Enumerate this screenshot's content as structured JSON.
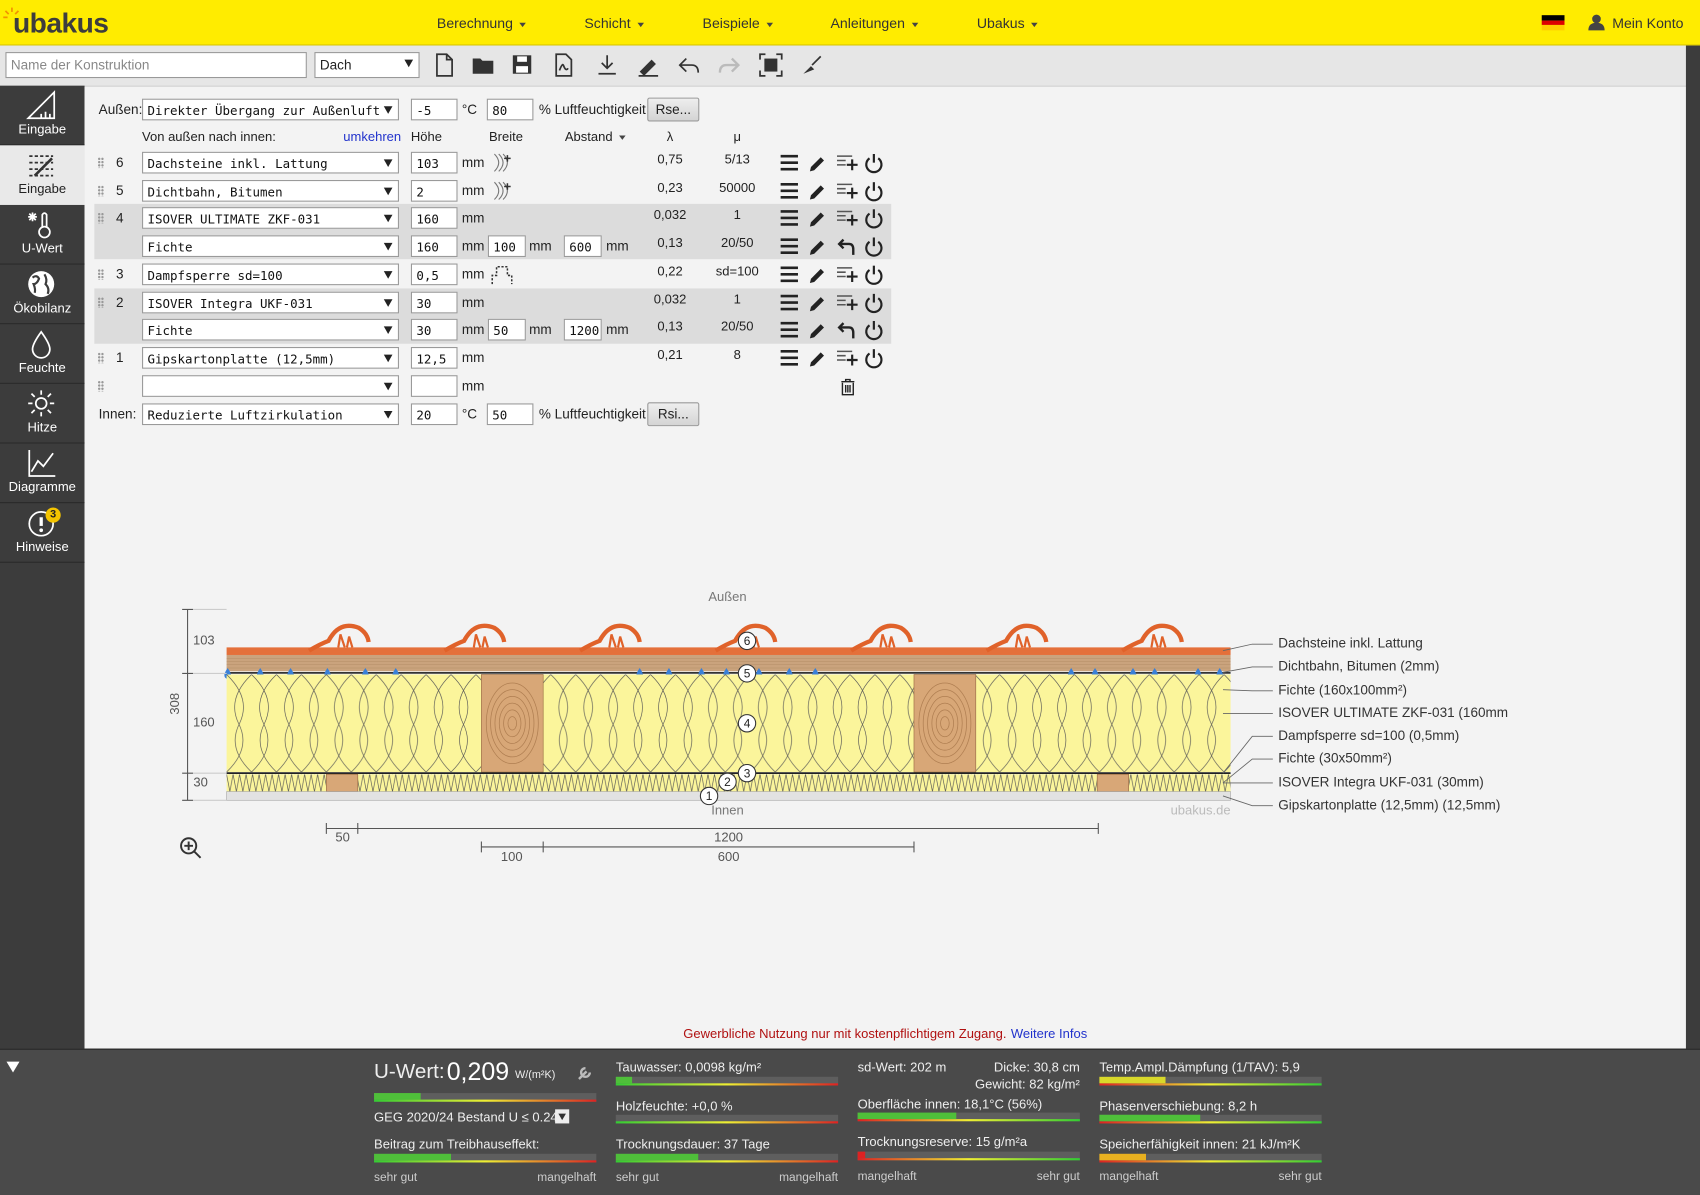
{
  "header": {
    "logo": "ubakus",
    "menu": [
      "Berechnung",
      "Schicht",
      "Beispiele",
      "Anleitungen",
      "Ubakus"
    ],
    "account": "Mein Konto"
  },
  "toolbar": {
    "name_placeholder": "Name der Konstruktion",
    "construction_type": "Dach"
  },
  "sidebar": {
    "items": [
      "Eingabe",
      "Eingabe",
      "U-Wert",
      "Ökobilanz",
      "Feuchte",
      "Hitze",
      "Diagramme",
      "Hinweise"
    ],
    "hint_count": "3"
  },
  "outside": {
    "label": "Außen:",
    "condition": "Direkter Übergang zur Außenluft",
    "temperature": "-5",
    "temperature_unit": "°C",
    "humidity": "80",
    "humidity_unit": "% Luftfeuchtigkeit",
    "button": "Rse..."
  },
  "columns": {
    "direction": "Von außen nach innen:",
    "reverse": "umkehren",
    "height": "Höhe",
    "width": "Breite",
    "spacing": "Abstand",
    "lambda": "λ",
    "mu": "μ"
  },
  "layers": [
    {
      "number": "6",
      "material": "Dachsteine inkl. Lattung",
      "thickness": "103",
      "unit": "mm",
      "lambda": "0,75",
      "mu": "5/13"
    },
    {
      "number": "5",
      "material": "Dichtbahn, Bitumen",
      "thickness": "2",
      "unit": "mm",
      "lambda": "0,23",
      "mu": "50000"
    },
    {
      "number": "4",
      "material": "ISOVER ULTIMATE ZKF-031",
      "thickness": "160",
      "unit": "mm",
      "lambda": "0,032",
      "mu": "1",
      "inset": {
        "material": "Fichte",
        "thickness": "160",
        "thickness_unit": "mm",
        "width": "100",
        "width_unit": "mm",
        "spacing": "600",
        "spacing_unit": "mm",
        "lambda": "0,13",
        "mu": "20/50"
      }
    },
    {
      "number": "3",
      "material": "Dampfsperre sd=100",
      "thickness": "0,5",
      "unit": "mm",
      "lambda": "0,22",
      "mu": "sd=100"
    },
    {
      "number": "2",
      "material": "ISOVER Integra UKF-031",
      "thickness": "30",
      "unit": "mm",
      "lambda": "0,032",
      "mu": "1",
      "inset": {
        "material": "Fichte",
        "thickness": "30",
        "thickness_unit": "mm",
        "width": "50",
        "width_unit": "mm",
        "spacing": "1200",
        "spacing_unit": "mm",
        "lambda": "0,13",
        "mu": "20/50"
      }
    },
    {
      "number": "1",
      "material": "Gipskartonplatte (12,5mm)",
      "thickness": "12,5",
      "unit": "mm",
      "lambda": "0,21",
      "mu": "8"
    }
  ],
  "new_layer": {
    "unit": "mm"
  },
  "inside": {
    "label": "Innen:",
    "condition": "Reduzierte Luftzirkulation",
    "temperature": "20",
    "temperature_unit": "°C",
    "humidity": "50",
    "humidity_unit": "% Luftfeuchtigkeit",
    "button": "Rsi..."
  },
  "drawing": {
    "outside": "Außen",
    "inside": "Innen",
    "watermark": "ubakus.de",
    "total_thickness": "308",
    "layer_thickness": [
      "103",
      "160",
      "30"
    ],
    "legend": [
      "Dachsteine inkl. Lattung",
      "Dichtbahn, Bitumen (2mm)",
      "Fichte (160x100mm²)",
      "ISOVER ULTIMATE ZKF-031 (160mm",
      "Dampfsperre sd=100 (0,5mm)",
      "Fichte (30x50mm²)",
      "ISOVER Integra UKF-031 (30mm)",
      "Gipskartonplatte (12,5mm) (12,5mm)"
    ],
    "markers": [
      "6",
      "5",
      "4",
      "3",
      "2",
      "1"
    ],
    "dimensions": [
      "50",
      "1200",
      "100",
      "600"
    ]
  },
  "notice": {
    "text": "Gewerbliche Nutzung nur mit kostenpflichtigem Zugang.",
    "link": "Weitere Infos"
  },
  "results": {
    "u_value": {
      "label": "U-Wert:",
      "value": "0,209",
      "unit": "W/(m²K)",
      "requirement": "GEG 2020/24 Bestand U ≤ 0.24"
    },
    "greenhouse": "Beitrag zum Treibhauseffekt:",
    "moisture": [
      "Tauwasser: 0,0098 kg/m²",
      "Holzfeuchte: +0,0 %",
      "Trocknungsdauer: 37 Tage"
    ],
    "properties": {
      "sd": "sd-Wert: 202 m",
      "thickness": "Dicke: 30,8 cm",
      "weight": "Gewicht: 82 kg/m²",
      "surface": "Oberfläche innen: 18,1°C (56%)",
      "drying_reserve": "Trocknungsreserve: 15 g/m²a"
    },
    "heat": [
      "Temp.Ampl.Dämpfung (1/TAV): 5,9",
      "Phasenverschiebung: 8,2 h",
      "Speicherfähigkeit innen: 21 kJ/m²K"
    ],
    "scale_good": "sehr gut",
    "scale_bad": "mangelhaft"
  }
}
